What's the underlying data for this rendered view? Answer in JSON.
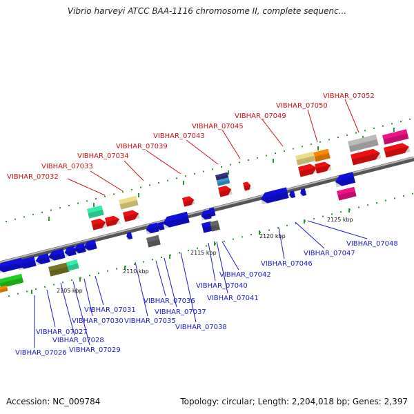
{
  "title": "Vibrio harveyi ATCC BAA-1116 chromosome II, complete sequenc...",
  "footer": {
    "accession": "Accession: NC_009784",
    "summary": "Topology: circular; Length: 2,204,018 bp; Genes: 2,397"
  },
  "scale_labels": [
    "2105 kbp",
    "2110 kbp",
    "2115 kbp",
    "2120 kbp",
    "2125 kbp"
  ],
  "colors": {
    "forward_label": "#cc1111",
    "reverse_label": "#1a1ac8",
    "red": "#ee1111",
    "blue": "#1010dd",
    "green": "#22cc22",
    "olive": "#777722",
    "mint": "#33eeaa",
    "khaki": "#eedd88",
    "orange": "#ff8800",
    "gray": "#bbbbbb",
    "darkgray": "#666666",
    "pink": "#ee1188",
    "navy": "#333388",
    "steel": "#3399cc"
  },
  "forward_labels": [
    "VIBHAR_07032",
    "VIBHAR_07033",
    "VIBHAR_07034",
    "VIBHAR_07039",
    "VIBHAR_07043",
    "VIBHAR_07045",
    "VIBHAR_07049",
    "VIBHAR_07050",
    "VIBHAR_07052"
  ],
  "reverse_labels": [
    "VIBHAR_07026",
    "VIBHAR_07027",
    "VIBHAR_07028",
    "VIBHAR_07029",
    "VIBHAR_07030",
    "VIBHAR_07031",
    "VIBHAR_07035",
    "VIBHAR_07036",
    "VIBHAR_07037",
    "VIBHAR_07038",
    "VIBHAR_07040",
    "VIBHAR_07041",
    "VIBHAR_07042",
    "VIBHAR_07046",
    "VIBHAR_07047",
    "VIBHAR_07048"
  ]
}
